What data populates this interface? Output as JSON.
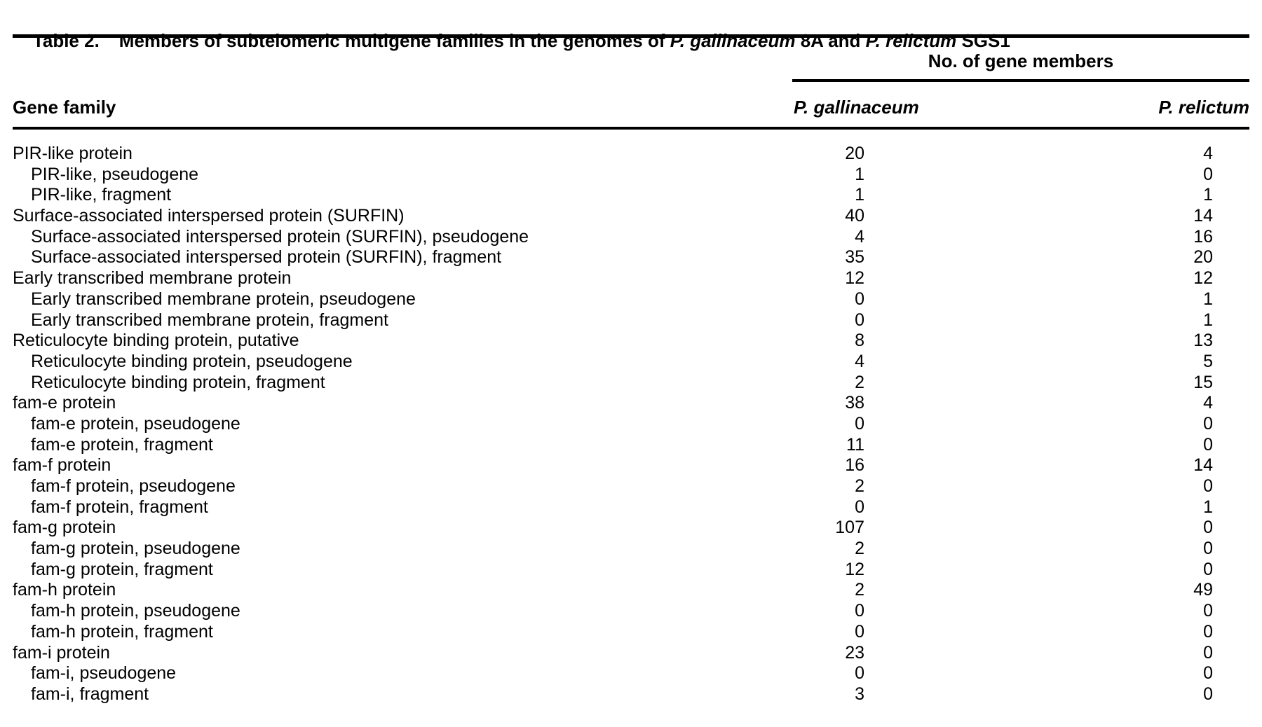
{
  "colors": {
    "text": "#000000",
    "rule": "#000000",
    "background": "#ffffff"
  },
  "title": {
    "label": "Table 2.",
    "part1": "Members of subtelomeric multigene families in the genomes of ",
    "species1": "P. gallinaceum",
    "part2": " 8A and ",
    "species2": "P. relictum",
    "part3": " SGS1"
  },
  "table": {
    "colgroup_header": "No. of gene members",
    "columns": {
      "gene_family": "Gene family",
      "col1": "P. gallinaceum",
      "col2": "P. relictum"
    },
    "rows": [
      {
        "label": "PIR-like protein",
        "indent": false,
        "pg": "20",
        "pr": "4"
      },
      {
        "label": "PIR-like, pseudogene",
        "indent": true,
        "pg": "1",
        "pr": "0"
      },
      {
        "label": "PIR-like, fragment",
        "indent": true,
        "pg": "1",
        "pr": "1"
      },
      {
        "label": "Surface-associated interspersed protein (SURFIN)",
        "indent": false,
        "pg": "40",
        "pr": "14"
      },
      {
        "label": "Surface-associated interspersed protein (SURFIN), pseudogene",
        "indent": true,
        "pg": "4",
        "pr": "16"
      },
      {
        "label": "Surface-associated interspersed protein (SURFIN), fragment",
        "indent": true,
        "pg": "35",
        "pr": "20"
      },
      {
        "label": "Early transcribed membrane protein",
        "indent": false,
        "pg": "12",
        "pr": "12"
      },
      {
        "label": "Early transcribed membrane protein, pseudogene",
        "indent": true,
        "pg": "0",
        "pr": "1"
      },
      {
        "label": "Early transcribed membrane protein, fragment",
        "indent": true,
        "pg": "0",
        "pr": "1"
      },
      {
        "label": "Reticulocyte binding protein, putative",
        "indent": false,
        "pg": "8",
        "pr": "13"
      },
      {
        "label": "Reticulocyte binding protein, pseudogene",
        "indent": true,
        "pg": "4",
        "pr": "5"
      },
      {
        "label": "Reticulocyte binding protein, fragment",
        "indent": true,
        "pg": "2",
        "pr": "15"
      },
      {
        "label": "fam-e protein",
        "indent": false,
        "pg": "38",
        "pr": "4"
      },
      {
        "label": "fam-e protein, pseudogene",
        "indent": true,
        "pg": "0",
        "pr": "0"
      },
      {
        "label": "fam-e protein, fragment",
        "indent": true,
        "pg": "11",
        "pr": "0"
      },
      {
        "label": "fam-f protein",
        "indent": false,
        "pg": "16",
        "pr": "14"
      },
      {
        "label": "fam-f protein, pseudogene",
        "indent": true,
        "pg": "2",
        "pr": "0"
      },
      {
        "label": "fam-f protein, fragment",
        "indent": true,
        "pg": "0",
        "pr": "1"
      },
      {
        "label": "fam-g protein",
        "indent": false,
        "pg": "107",
        "pr": "0"
      },
      {
        "label": "fam-g protein, pseudogene",
        "indent": true,
        "pg": "2",
        "pr": "0"
      },
      {
        "label": "fam-g protein, fragment",
        "indent": true,
        "pg": "12",
        "pr": "0"
      },
      {
        "label": "fam-h protein",
        "indent": false,
        "pg": "2",
        "pr": "49"
      },
      {
        "label": "fam-h protein, pseudogene",
        "indent": true,
        "pg": "0",
        "pr": "0"
      },
      {
        "label": "fam-h protein, fragment",
        "indent": true,
        "pg": "0",
        "pr": "0"
      },
      {
        "label": "fam-i protein",
        "indent": false,
        "pg": "23",
        "pr": "0"
      },
      {
        "label": "fam-i, pseudogene",
        "indent": true,
        "pg": "0",
        "pr": "0"
      },
      {
        "label": "fam-i, fragment",
        "indent": true,
        "pg": "3",
        "pr": "0"
      }
    ]
  }
}
